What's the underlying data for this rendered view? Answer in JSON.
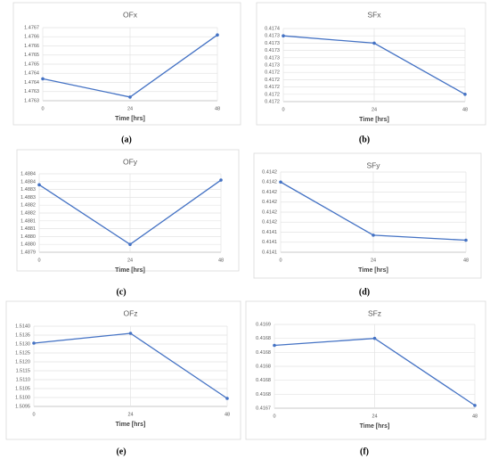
{
  "chart_data": [
    {
      "type": "line",
      "title": "OFx",
      "xlabel": "Time [hrs]",
      "caption": "(a)",
      "color": "#4472c4",
      "grid": true,
      "x": [
        0,
        24,
        48
      ],
      "values": [
        1.47637,
        1.47627,
        1.47661
      ],
      "xlim": [
        0,
        48
      ],
      "xticks": [
        0,
        24,
        48
      ],
      "ylim": [
        1.47625,
        1.47665
      ],
      "yticks": [
        {
          "value": 1.47625,
          "label": "1.4763"
        },
        1.4763,
        {
          "value": 1.47635,
          "label": "1.4764"
        },
        1.4764,
        {
          "value": 1.47645,
          "label": "1.4765"
        },
        1.4765,
        {
          "value": 1.47655,
          "label": "1.4766"
        },
        1.4766,
        {
          "value": 1.47665,
          "label": "1.4767"
        }
      ]
    },
    {
      "type": "line",
      "title": "SFx",
      "xlabel": "Time [hrs]",
      "caption": "(b)",
      "color": "#4472c4",
      "grid": true,
      "x": [
        0,
        24,
        48
      ],
      "values": [
        0.41734,
        0.41732,
        0.41718
      ],
      "xlim": [
        0,
        48
      ],
      "xticks": [
        0,
        24,
        48
      ],
      "ylim": [
        0.41716,
        0.41736
      ],
      "yticks": [
        {
          "value": 0.41716,
          "label": "0.4172"
        },
        {
          "value": 0.41718,
          "label": "0.4172"
        },
        0.4172,
        {
          "value": 0.41722,
          "label": "0.4172"
        },
        {
          "value": 0.41724,
          "label": "0.4172"
        },
        {
          "value": 0.41726,
          "label": "0.4173"
        },
        {
          "value": 0.41728,
          "label": "0.4173"
        },
        0.4173,
        {
          "value": 0.41732,
          "label": "0.4173"
        },
        {
          "value": 0.41734,
          "label": "0.4173"
        },
        {
          "value": 0.41736,
          "label": "0.4174"
        }
      ]
    },
    {
      "type": "line",
      "title": "OFy",
      "xlabel": "Time [hrs]",
      "caption": "(c)",
      "color": "#4472c4",
      "grid": true,
      "x": [
        0,
        24,
        48
      ],
      "values": [
        1.48833,
        1.48795,
        1.48836
      ],
      "xlim": [
        0,
        48
      ],
      "xticks": [
        0,
        24,
        48
      ],
      "ylim": [
        1.4879,
        1.4884
      ],
      "yticks": [
        1.4879,
        {
          "value": 1.48795,
          "label": "1.4880"
        },
        {
          "value": 1.488,
          "label": "1.4880"
        },
        {
          "value": 1.48805,
          "label": "1.4881"
        },
        1.4881,
        {
          "value": 1.48815,
          "label": "1.4882"
        },
        1.4882,
        {
          "value": 1.48825,
          "label": "1.4883"
        },
        1.4883,
        {
          "value": 1.48835,
          "label": "1.4884"
        },
        1.4884
      ]
    },
    {
      "type": "line",
      "title": "SFy",
      "xlabel": "Time [hrs]",
      "caption": "(d)",
      "color": "#4472c4",
      "grid": true,
      "x": [
        0,
        24,
        48
      ],
      "values": [
        0.41419,
        0.414137,
        0.414132
      ],
      "xlim": [
        0,
        48
      ],
      "xticks": [
        0,
        24,
        48
      ],
      "ylim": [
        0.41412,
        0.4142
      ],
      "yticks": [
        {
          "value": 0.41412,
          "label": "0.4141"
        },
        {
          "value": 0.41413,
          "label": "0.4141"
        },
        {
          "value": 0.41414,
          "label": "0.4141"
        },
        {
          "value": 0.41415,
          "label": "0.4142"
        },
        {
          "value": 0.41416,
          "label": "0.4142"
        },
        {
          "value": 0.41417,
          "label": "0.4142"
        },
        {
          "value": 0.41418,
          "label": "0.4142"
        },
        {
          "value": 0.41419,
          "label": "0.4142"
        },
        0.4142
      ]
    },
    {
      "type": "line",
      "title": "OFz",
      "xlabel": "Time [hrs]",
      "caption": "(e)",
      "color": "#4472c4",
      "grid": true,
      "x": [
        0,
        24,
        48
      ],
      "values": [
        1.51305,
        1.5136,
        1.50995
      ],
      "xlim": [
        0,
        48
      ],
      "xticks": [
        0,
        24,
        48
      ],
      "ylim": [
        1.5095,
        1.514
      ],
      "yticks": [
        1.5095,
        {
          "value": 1.51,
          "label": "1.5100"
        },
        1.5105,
        {
          "value": 1.511,
          "label": "1.5110"
        },
        1.5115,
        {
          "value": 1.512,
          "label": "1.5120"
        },
        1.5125,
        {
          "value": 1.513,
          "label": "1.5130"
        },
        1.5135,
        {
          "value": 1.514,
          "label": "1.5140"
        }
      ]
    },
    {
      "type": "line",
      "title": "SFz",
      "xlabel": "Time [hrs]",
      "caption": "(f)",
      "color": "#4472c4",
      "grid": true,
      "x": [
        0,
        24,
        48
      ],
      "values": [
        0.41683,
        0.41684,
        0.416744
      ],
      "xlim": [
        0,
        48
      ],
      "xticks": [
        0,
        24,
        48
      ],
      "ylim": [
        0.41674,
        0.41686
      ],
      "yticks": [
        {
          "value": 0.41674,
          "label": "0.4167"
        },
        {
          "value": 0.41676,
          "label": "0.4168"
        },
        {
          "value": 0.41678,
          "label": "0.4168"
        },
        0.4168,
        {
          "value": 0.41682,
          "label": "0.4168"
        },
        {
          "value": 0.41684,
          "label": "0.4168"
        },
        {
          "value": 0.41686,
          "label": "0.4169"
        }
      ]
    }
  ]
}
